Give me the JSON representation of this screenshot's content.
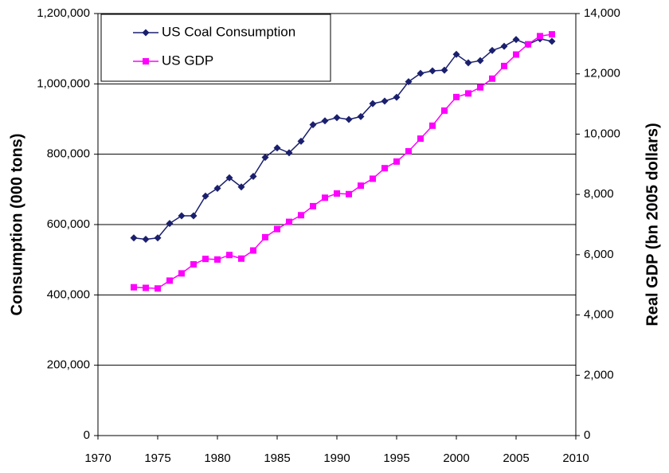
{
  "chart_data": {
    "type": "line",
    "y_label": "Consumption (000 tons)",
    "y2_label": "Real GDP (bn 2005 dollars)",
    "x": [
      1973,
      1974,
      1975,
      1976,
      1977,
      1978,
      1979,
      1980,
      1981,
      1982,
      1983,
      1984,
      1985,
      1986,
      1987,
      1988,
      1989,
      1990,
      1991,
      1992,
      1993,
      1994,
      1995,
      1996,
      1997,
      1998,
      1999,
      2000,
      2001,
      2002,
      2003,
      2004,
      2005,
      2006,
      2007,
      2008
    ],
    "series": [
      {
        "name": "US Coal Consumption",
        "color": "#1a1f6e",
        "marker": "diamond",
        "values": [
          562000,
          558000,
          562000,
          603000,
          625000,
          625000,
          681000,
          703000,
          733000,
          707000,
          737000,
          791000,
          818000,
          804000,
          837000,
          884000,
          895000,
          904000,
          899000,
          907000,
          944000,
          951000,
          962000,
          1006000,
          1030000,
          1037000,
          1039000,
          1084000,
          1060000,
          1066000,
          1095000,
          1107000,
          1126000,
          1112000,
          1128000,
          1121000
        ]
      },
      {
        "name": "US GDP",
        "color": "#ff00ff",
        "marker": "square",
        "axis": "y2",
        "values": [
          4920,
          4900,
          4880,
          5140,
          5380,
          5680,
          5860,
          5840,
          5990,
          5870,
          6140,
          6580,
          6850,
          7090,
          7310,
          7610,
          7890,
          8030,
          8010,
          8290,
          8520,
          8870,
          9090,
          9430,
          9850,
          10280,
          10780,
          11230,
          11350,
          11550,
          11840,
          12260,
          12640,
          12980,
          13250,
          13310
        ]
      }
    ],
    "xlim": [
      1970,
      2010
    ],
    "xticks": [
      1970,
      1975,
      1980,
      1985,
      1990,
      1995,
      2000,
      2005,
      2010
    ],
    "ylim": [
      0,
      1200000
    ],
    "yticks": [
      0,
      {
        "value": 200000,
        "label": "200,000"
      },
      {
        "value": 400000,
        "label": "400,000"
      },
      {
        "value": 600000,
        "label": "600,000"
      },
      {
        "value": 800000,
        "label": "800,000"
      },
      {
        "value": 1000000,
        "label": "1,000,000"
      },
      {
        "value": 1200000,
        "label": "1,200,000"
      }
    ],
    "y2lim": [
      0,
      14000
    ],
    "y2ticks": [
      0,
      {
        "value": 2000,
        "label": "2,000"
      },
      {
        "value": 4000,
        "label": "4,000"
      },
      {
        "value": 6000,
        "label": "6,000"
      },
      {
        "value": 8000,
        "label": "8,000"
      },
      {
        "value": 10000,
        "label": "10,000"
      },
      {
        "value": 12000,
        "label": "12,000"
      },
      {
        "value": 14000,
        "label": "14,000"
      }
    ],
    "grid": true,
    "legend": "top-left"
  }
}
